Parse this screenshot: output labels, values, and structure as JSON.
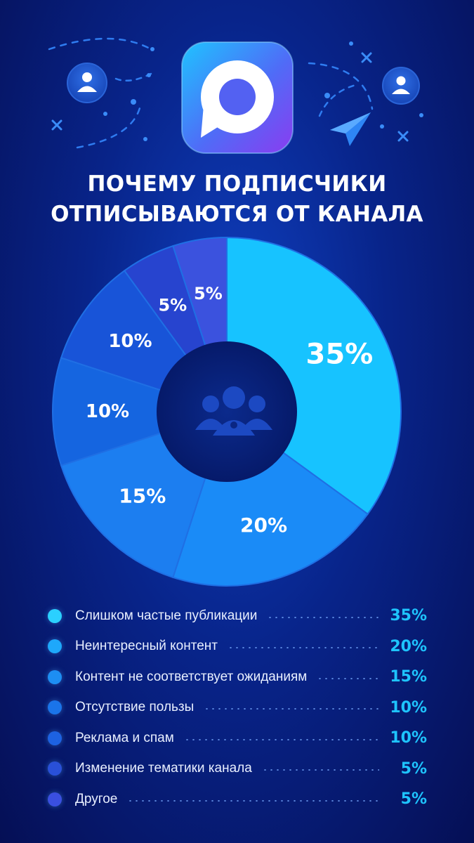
{
  "title_lines": [
    "ПОЧЕМУ ПОДПИСЧИКИ",
    "ОТПИСЫВАЮТСЯ ОТ КАНАЛА"
  ],
  "icons": {
    "app": "chat-bubble-app-icon",
    "left": "user-icon",
    "right": "user-icon",
    "plane": "paper-plane-icon",
    "center": "audience-group-icon"
  },
  "chart_data": {
    "type": "pie",
    "variant": "donut",
    "categories": [
      "Слишком частые публикации",
      "Неинтересный контент",
      "Контент не соответствует ожиданиям",
      "Отсутствие пользы",
      "Реклама и спам",
      "Изменение тематики канала",
      "Другое"
    ],
    "values": [
      35,
      20,
      15,
      10,
      10,
      5,
      5
    ],
    "labels": [
      "35%",
      "20%",
      "15%",
      "10%",
      "10%",
      "5%",
      "5%"
    ],
    "colors": [
      "#17c3ff",
      "#1a8bf7",
      "#1c7ef0",
      "#1565e0",
      "#1854d8",
      "#2744cf",
      "#3b52de"
    ],
    "legend_placement": "bottom"
  }
}
